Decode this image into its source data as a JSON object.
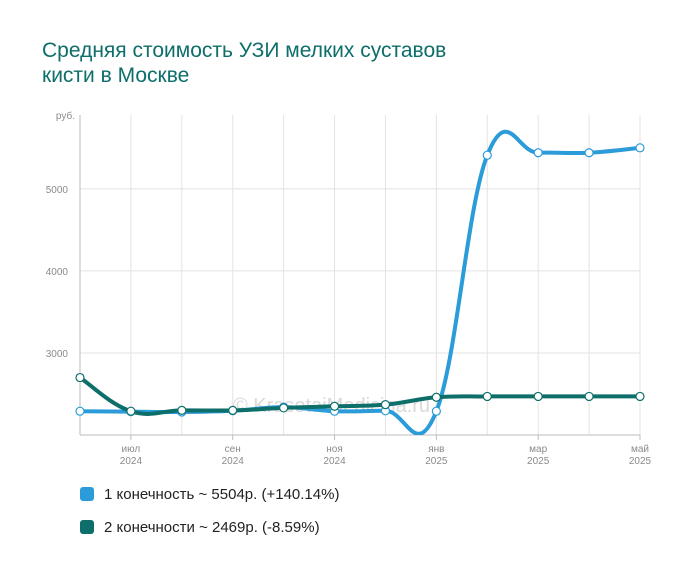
{
  "chart_data": {
    "type": "line",
    "title_lines": [
      "Средняя стоимость УЗИ мелких суставов",
      "кисти в Москве"
    ],
    "y_unit_label": "руб.",
    "watermark": "© KrasotaiMedicina.ru",
    "ylim": [
      2000,
      5900
    ],
    "y_ticks": [
      {
        "value": 3000,
        "label": "3000"
      },
      {
        "value": 4000,
        "label": "4000"
      },
      {
        "value": 5000,
        "label": "5000"
      }
    ],
    "x_ticks": [
      {
        "month_index": 1,
        "month": "июл",
        "year": "2024"
      },
      {
        "month_index": 3,
        "month": "сен",
        "year": "2024"
      },
      {
        "month_index": 5,
        "month": "ноя",
        "year": "2024"
      },
      {
        "month_index": 7,
        "month": "янв",
        "year": "2025"
      },
      {
        "month_index": 9,
        "month": "мар",
        "year": "2025"
      },
      {
        "month_index": 11,
        "month": "май",
        "year": "2025"
      }
    ],
    "x_months": [
      "2024-06",
      "2024-07",
      "2024-08",
      "2024-09",
      "2024-10",
      "2024-11",
      "2024-12",
      "2025-01",
      "2025-02",
      "2025-03",
      "2025-04",
      "2025-05"
    ],
    "grid": true,
    "series": [
      {
        "name": "1 конечность",
        "legend": "1 конечность ~ 5504р. (+140.14%)",
        "color": "#2b9bd9",
        "values": [
          2290,
          2285,
          2280,
          2295,
          2340,
          2290,
          2295,
          2290,
          5410,
          5440,
          5440,
          5500
        ]
      },
      {
        "name": "2 конечности",
        "legend": "2 конечности ~ 2469р. (-8.59%)",
        "color": "#0d6e6a",
        "values": [
          2700,
          2290,
          2300,
          2300,
          2330,
          2350,
          2370,
          2460,
          2470,
          2470,
          2470,
          2470
        ]
      }
    ]
  }
}
